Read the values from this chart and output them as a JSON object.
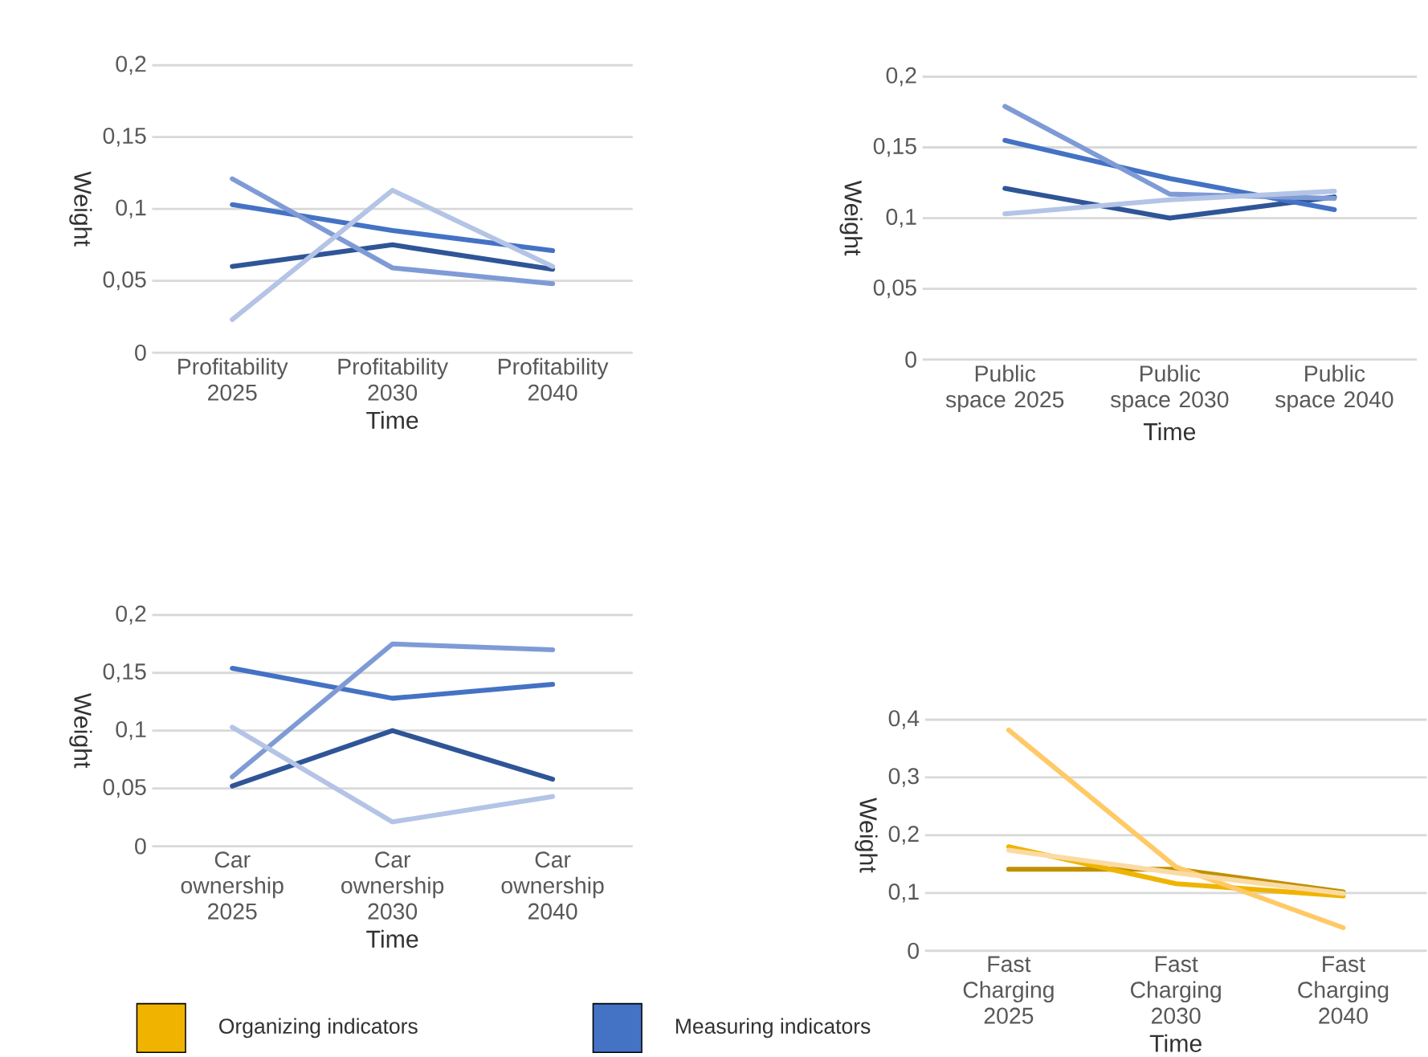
{
  "chart_data": [
    {
      "type": "line",
      "xlabel": "Time",
      "ylabel": "Weight",
      "grid": "y",
      "categories": [
        "Profitability 2025",
        "Profitability 2030",
        "Profitability 2040"
      ],
      "ylim": [
        0,
        0.2
      ],
      "yticks": [
        0,
        {
          "value": 0.05,
          "label": "0,05"
        },
        {
          "value": 0.1,
          "label": "0,1"
        },
        {
          "value": 0.15,
          "label": "0,15"
        },
        {
          "value": 0.2,
          "label": "0,2"
        }
      ],
      "series": [
        {
          "color": "#2f5597",
          "values": [
            0.06,
            0.075,
            0.058
          ]
        },
        {
          "color": "#4472c4",
          "values": [
            0.103,
            0.085,
            0.071
          ]
        },
        {
          "color": "#7f9bd6",
          "values": [
            0.121,
            0.059,
            0.048
          ]
        },
        {
          "color": "#b4c4e6",
          "values": [
            0.023,
            0.113,
            0.06
          ]
        }
      ]
    },
    {
      "type": "line",
      "xlabel": "Time",
      "ylabel": "Weight",
      "grid": "y",
      "categories": [
        "Public space 2025",
        "Public space 2030",
        "Public space 2040"
      ],
      "ylim": [
        0,
        0.2
      ],
      "yticks": [
        0,
        {
          "value": 0.05,
          "label": "0,05"
        },
        {
          "value": 0.1,
          "label": "0,1"
        },
        {
          "value": 0.15,
          "label": "0,15"
        },
        {
          "value": 0.2,
          "label": "0,2"
        }
      ],
      "series": [
        {
          "color": "#2f5597",
          "values": [
            0.121,
            0.1,
            0.115
          ]
        },
        {
          "color": "#4472c4",
          "values": [
            0.155,
            0.128,
            0.106
          ]
        },
        {
          "color": "#7f9bd6",
          "values": [
            0.179,
            0.117,
            0.114
          ]
        },
        {
          "color": "#b4c4e6",
          "values": [
            0.103,
            0.113,
            0.119
          ]
        }
      ]
    },
    {
      "type": "line",
      "xlabel": "Time",
      "ylabel": "Weight",
      "grid": "y",
      "categories": [
        "Car ownership 2025",
        "Car ownership 2030",
        "Car ownership 2040"
      ],
      "ylim": [
        0,
        0.2
      ],
      "yticks": [
        0,
        {
          "value": 0.05,
          "label": "0,05"
        },
        {
          "value": 0.1,
          "label": "0,1"
        },
        {
          "value": 0.15,
          "label": "0,15"
        },
        {
          "value": 0.2,
          "label": "0,2"
        }
      ],
      "series": [
        {
          "color": "#2f5597",
          "values": [
            0.052,
            0.1,
            0.058
          ]
        },
        {
          "color": "#4472c4",
          "values": [
            0.154,
            0.128,
            0.14
          ]
        },
        {
          "color": "#7f9bd6",
          "values": [
            0.06,
            0.175,
            0.17
          ]
        },
        {
          "color": "#b4c4e6",
          "values": [
            0.103,
            0.021,
            0.043
          ]
        }
      ]
    },
    {
      "type": "line",
      "xlabel": "Time",
      "ylabel": "Weight",
      "grid": "y",
      "categories": [
        "Fast Charging 2025",
        "Fast Charging 2030",
        "Fast Charging 2040"
      ],
      "ylim": [
        0,
        0.4
      ],
      "yticks": [
        0,
        {
          "value": 0.1,
          "label": "0,1"
        },
        {
          "value": 0.2,
          "label": "0,2"
        },
        {
          "value": 0.3,
          "label": "0,3"
        },
        {
          "value": 0.4,
          "label": "0,4"
        }
      ],
      "series": [
        {
          "color": "#bf9000",
          "values": [
            0.141,
            0.141,
            0.102
          ]
        },
        {
          "color": "#f0b400",
          "values": [
            0.18,
            0.116,
            0.095
          ]
        },
        {
          "color": "#ffc966",
          "values": [
            0.382,
            0.145,
            0.04
          ]
        },
        {
          "color": "#fbdba4",
          "values": [
            0.174,
            0.135,
            0.099
          ]
        }
      ]
    },
    {
      "type": "other",
      "categories": [
        "Organizing indicators",
        "Measuring indicators"
      ],
      "colors": [
        "#f0b400",
        "#4472c4"
      ]
    }
  ]
}
